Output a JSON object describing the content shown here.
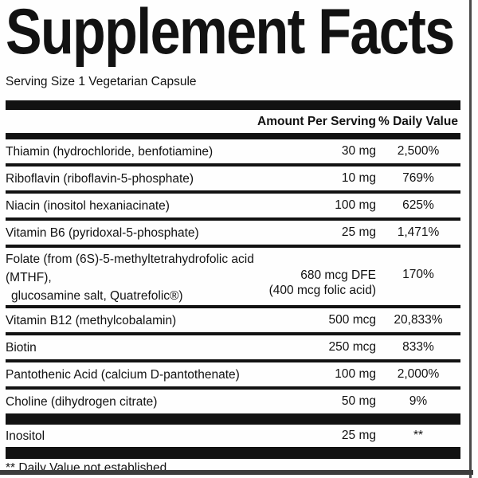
{
  "label": {
    "title": "Supplement Facts",
    "serving_size": "Serving Size 1 Vegetarian Capsule",
    "table": {
      "headers": {
        "amount": "Amount Per Serving",
        "daily_value": "% Daily Value"
      },
      "rows": [
        {
          "name": "Thiamin (hydrochloride, benfotiamine)",
          "amount": "30 mg",
          "daily_value": "2,500%"
        },
        {
          "name": "Riboflavin (riboflavin-5-phosphate)",
          "amount": "10 mg",
          "daily_value": "769%"
        },
        {
          "name": "Niacin (inositol hexaniacinate)",
          "amount": "100 mg",
          "daily_value": "625%"
        },
        {
          "name": "Vitamin B6 (pyridoxal-5-phosphate)",
          "amount": "25 mg",
          "daily_value": "1,471%"
        },
        {
          "name_line1": "Folate (from (6S)-5-methyltetrahydrofolic acid (MTHF),",
          "name_line2": "glucosamine salt, Quatrefolic®)",
          "amount": "680 mcg DFE",
          "amount_note": "(400 mcg folic acid)",
          "daily_value": "170%"
        },
        {
          "name": "Vitamin B12 (methylcobalamin)",
          "amount": "500 mcg",
          "daily_value": "20,833%"
        },
        {
          "name": "Biotin",
          "amount": "250 mcg",
          "daily_value": "833%"
        },
        {
          "name": "Pantothenic Acid (calcium D-pantothenate)",
          "amount": "100 mg",
          "daily_value": "2,000%"
        },
        {
          "name": "Choline (dihydrogen citrate)",
          "amount": "50 mg",
          "daily_value": "9%"
        },
        {
          "name": "Inositol",
          "amount": "25 mg",
          "daily_value": "**"
        }
      ]
    },
    "footnote": "** Daily Value not established.",
    "colors": {
      "text": "#121212",
      "rule": "#121212",
      "border": "#4a4a4a",
      "background": "#fefefe"
    }
  }
}
